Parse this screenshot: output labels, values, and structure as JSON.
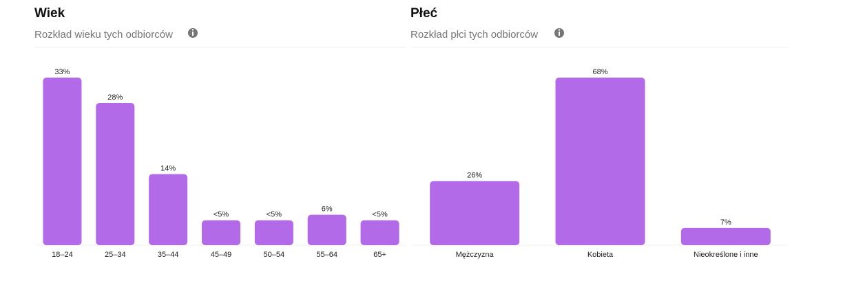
{
  "chart_data": [
    {
      "type": "bar",
      "title": "Wiek",
      "subtitle": "Rozkład wieku tych odbiorców",
      "categories": [
        "18–24",
        "25–34",
        "35–44",
        "45–49",
        "50–54",
        "55–64",
        "65+"
      ],
      "values": [
        33,
        28,
        14,
        4.9,
        4.9,
        6,
        4.9
      ],
      "value_labels": [
        "33%",
        "28%",
        "14%",
        "<5%",
        "<5%",
        "6%",
        "<5%"
      ],
      "color": "#b36ae8"
    },
    {
      "type": "bar",
      "title": "Płeć",
      "subtitle": "Rozkład płci tych odbiorców",
      "categories": [
        "Mężczyzna",
        "Kobieta",
        "Nieokreślone i inne"
      ],
      "values": [
        26,
        68,
        7
      ],
      "value_labels": [
        "26%",
        "68%",
        "7%"
      ],
      "color": "#b36ae8"
    }
  ]
}
